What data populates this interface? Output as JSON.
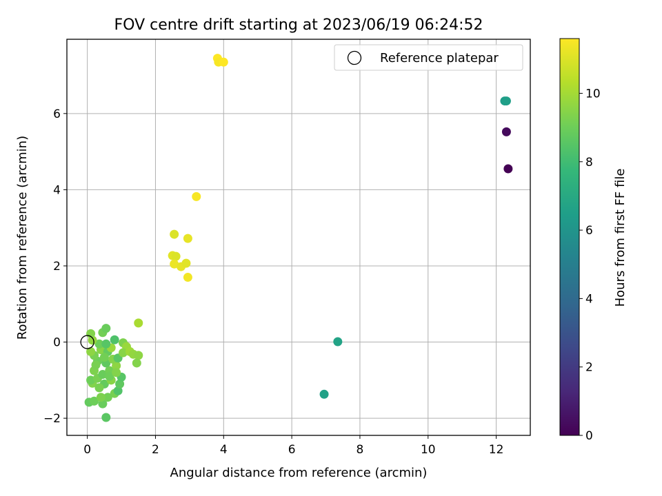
{
  "chart_data": {
    "type": "scatter",
    "title": "FOV centre drift starting at 2023/06/19 06:24:52",
    "xlabel": "Angular distance from reference (arcmin)",
    "ylabel": "Rotation from reference (arcmin)",
    "xlim": [
      -0.6,
      13.0
    ],
    "ylim": [
      -2.45,
      7.95
    ],
    "x_ticks": [
      0,
      2,
      4,
      6,
      8,
      10,
      12
    ],
    "x_tick_labels": [
      "0",
      "2",
      "4",
      "6",
      "8",
      "10",
      "12"
    ],
    "y_ticks": [
      -2,
      0,
      2,
      4,
      6
    ],
    "y_tick_labels": [
      "−2",
      "0",
      "2",
      "4",
      "6"
    ],
    "grid": true,
    "legend": {
      "placement": "top-right",
      "entries": [
        {
          "label": "Reference platepar",
          "marker": "open-circle"
        }
      ]
    },
    "reference_point": {
      "x": 0,
      "y": 0
    },
    "colorbar": {
      "label": "Hours from first FF file",
      "colormap": "viridis",
      "range": [
        0,
        11.6
      ],
      "ticks": [
        0,
        2,
        4,
        6,
        8,
        10
      ],
      "tick_labels": [
        "0",
        "2",
        "4",
        "6",
        "8",
        "10"
      ],
      "stops": [
        "#440154",
        "#482878",
        "#3e4989",
        "#31688e",
        "#26828e",
        "#1f9e89",
        "#35b779",
        "#6ece58",
        "#b5de2b",
        "#fde725"
      ]
    },
    "points": [
      {
        "x": 12.3,
        "y": 5.52,
        "c": 0.3
      },
      {
        "x": 12.35,
        "y": 4.55,
        "c": 0.0
      },
      {
        "x": 12.25,
        "y": 6.33,
        "c": 6.4
      },
      {
        "x": 12.3,
        "y": 6.33,
        "c": 6.5
      },
      {
        "x": 7.35,
        "y": 0.01,
        "c": 6.7
      },
      {
        "x": 6.95,
        "y": -1.37,
        "c": 6.6
      },
      {
        "x": 0.55,
        "y": -1.98,
        "c": 8.6
      },
      {
        "x": 0.05,
        "y": -1.58,
        "c": 8.8
      },
      {
        "x": 0.2,
        "y": -1.55,
        "c": 9.0
      },
      {
        "x": 0.45,
        "y": -1.62,
        "c": 8.9
      },
      {
        "x": 0.8,
        "y": -1.35,
        "c": 9.2
      },
      {
        "x": 0.9,
        "y": -1.28,
        "c": 8.4
      },
      {
        "x": 0.6,
        "y": -1.45,
        "c": 9.1
      },
      {
        "x": 0.4,
        "y": -1.45,
        "c": 9.3
      },
      {
        "x": 0.95,
        "y": -1.1,
        "c": 8.7
      },
      {
        "x": 1.0,
        "y": -0.92,
        "c": 8.5
      },
      {
        "x": 0.15,
        "y": -1.08,
        "c": 9.4
      },
      {
        "x": 0.1,
        "y": -1.0,
        "c": 9.0
      },
      {
        "x": 0.3,
        "y": -0.95,
        "c": 9.2
      },
      {
        "x": 0.5,
        "y": -1.1,
        "c": 8.8
      },
      {
        "x": 0.7,
        "y": -1.0,
        "c": 9.5
      },
      {
        "x": 0.2,
        "y": -0.75,
        "c": 9.3
      },
      {
        "x": 0.45,
        "y": -0.85,
        "c": 8.9
      },
      {
        "x": 0.65,
        "y": -0.75,
        "c": 9.1
      },
      {
        "x": 0.85,
        "y": -0.62,
        "c": 9.6
      },
      {
        "x": 0.3,
        "y": -0.5,
        "c": 9.0
      },
      {
        "x": 0.55,
        "y": -0.55,
        "c": 8.7
      },
      {
        "x": 0.75,
        "y": -0.45,
        "c": 9.4
      },
      {
        "x": 0.9,
        "y": -0.42,
        "c": 8.6
      },
      {
        "x": 0.2,
        "y": -0.35,
        "c": 9.2
      },
      {
        "x": 0.4,
        "y": -0.2,
        "c": 9.5
      },
      {
        "x": 0.6,
        "y": -0.25,
        "c": 8.8
      },
      {
        "x": 0.7,
        "y": -0.15,
        "c": 9.8
      },
      {
        "x": 0.35,
        "y": -0.05,
        "c": 9.0
      },
      {
        "x": 0.55,
        "y": -0.05,
        "c": 8.5
      },
      {
        "x": 0.8,
        "y": 0.06,
        "c": 8.3
      },
      {
        "x": 0.1,
        "y": -0.25,
        "c": 9.6
      },
      {
        "x": 0.15,
        "y": 0.05,
        "c": 9.7
      },
      {
        "x": 0.1,
        "y": 0.22,
        "c": 9.4
      },
      {
        "x": 0.45,
        "y": 0.25,
        "c": 9.1
      },
      {
        "x": 0.55,
        "y": 0.36,
        "c": 8.9
      },
      {
        "x": 1.05,
        "y": -0.02,
        "c": 9.3
      },
      {
        "x": 1.15,
        "y": -0.12,
        "c": 9.8
      },
      {
        "x": 1.05,
        "y": -0.28,
        "c": 9.5
      },
      {
        "x": 1.25,
        "y": -0.25,
        "c": 9.9
      },
      {
        "x": 1.35,
        "y": -0.32,
        "c": 9.7
      },
      {
        "x": 1.5,
        "y": -0.35,
        "c": 9.6
      },
      {
        "x": 1.45,
        "y": -0.55,
        "c": 9.4
      },
      {
        "x": 1.5,
        "y": 0.5,
        "c": 10.1
      },
      {
        "x": 0.25,
        "y": -0.6,
        "c": 9.2
      },
      {
        "x": 0.5,
        "y": -0.4,
        "c": 9.1
      },
      {
        "x": 0.65,
        "y": -0.9,
        "c": 9.0
      },
      {
        "x": 0.35,
        "y": -1.2,
        "c": 9.2
      },
      {
        "x": 0.85,
        "y": -0.8,
        "c": 9.4
      },
      {
        "x": 2.55,
        "y": 2.83,
        "c": 11.0
      },
      {
        "x": 2.95,
        "y": 2.72,
        "c": 11.2
      },
      {
        "x": 2.5,
        "y": 2.27,
        "c": 11.1
      },
      {
        "x": 2.6,
        "y": 2.25,
        "c": 11.0
      },
      {
        "x": 2.55,
        "y": 2.05,
        "c": 11.3
      },
      {
        "x": 2.75,
        "y": 1.98,
        "c": 11.2
      },
      {
        "x": 2.9,
        "y": 2.07,
        "c": 11.1
      },
      {
        "x": 2.95,
        "y": 1.7,
        "c": 11.4
      },
      {
        "x": 3.2,
        "y": 3.82,
        "c": 11.5
      },
      {
        "x": 3.82,
        "y": 7.45,
        "c": 11.6
      },
      {
        "x": 3.85,
        "y": 7.35,
        "c": 11.5
      },
      {
        "x": 4.0,
        "y": 7.35,
        "c": 11.6
      }
    ]
  }
}
